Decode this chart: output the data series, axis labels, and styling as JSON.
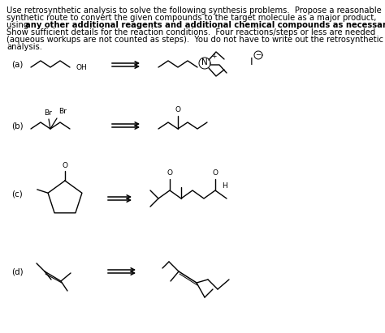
{
  "bg_color": "#ffffff",
  "text_color": "#000000",
  "labels": [
    "(a)",
    "(b)",
    "(c)",
    "(d)"
  ],
  "fontsize_text": 7.2,
  "fontsize_label": 7.5
}
